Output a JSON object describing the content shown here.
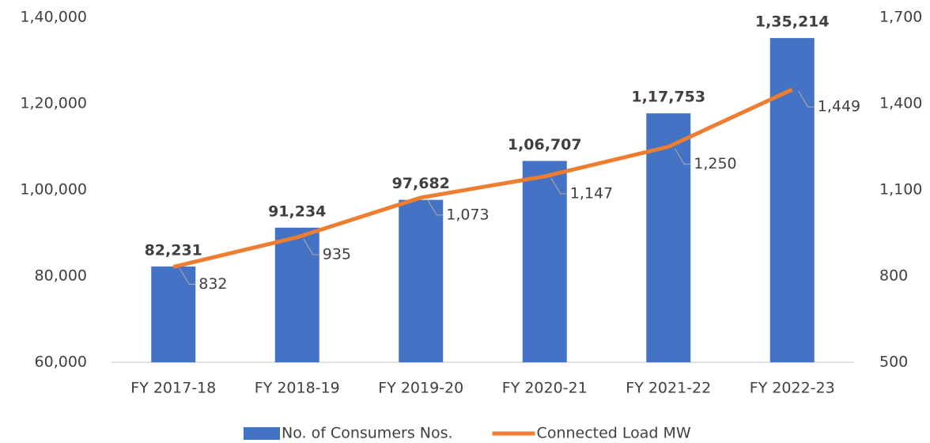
{
  "chart_data": {
    "type": "bar",
    "categories": [
      "FY 2017-18",
      "FY 2018-19",
      "FY 2019-20",
      "FY 2020-21",
      "FY 2021-22",
      "FY 2022-23"
    ],
    "series": [
      {
        "name": "No. of Consumers Nos.",
        "type": "bar",
        "color": "#4472c4",
        "values": [
          82231,
          91234,
          97682,
          106707,
          117753,
          135214
        ],
        "value_labels": [
          "82,231",
          "91,234",
          "97,682",
          "1,06,707",
          "1,17,753",
          "1,35,214"
        ]
      },
      {
        "name": "Connected Load MW",
        "type": "line",
        "axis": "y2",
        "color": "#ed7d31",
        "values": [
          832,
          935,
          1073,
          1147,
          1250,
          1449
        ],
        "value_labels": [
          "832",
          "935",
          "1,073",
          "1,147",
          "1,250",
          "1,449"
        ]
      }
    ],
    "ylim": [
      60000,
      140000
    ],
    "yticks": [
      {
        "value": 60000,
        "label": "60,000"
      },
      {
        "value": 80000,
        "label": "80,000"
      },
      {
        "value": 100000,
        "label": "1,00,000"
      },
      {
        "value": 120000,
        "label": "1,20,000"
      },
      {
        "value": 140000,
        "label": "1,40,000"
      }
    ],
    "y2lim": [
      500,
      1700
    ],
    "y2ticks": [
      500,
      800,
      {
        "value": 1100,
        "label": "1,100"
      },
      {
        "value": 1400,
        "label": "1,400"
      },
      {
        "value": 1700,
        "label": "1,700"
      }
    ],
    "legend": "bottom"
  }
}
